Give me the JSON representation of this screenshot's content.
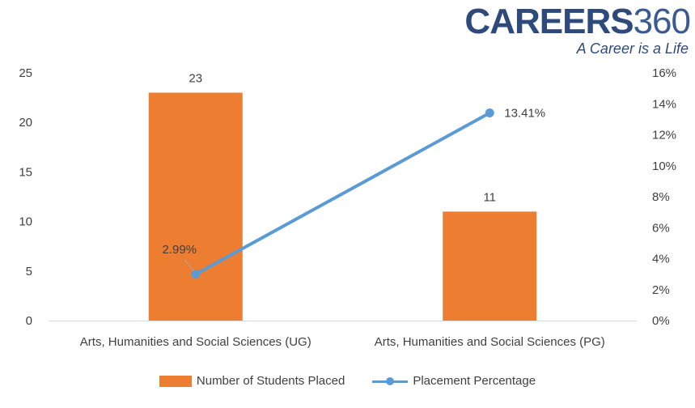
{
  "logo": {
    "brand": "CAREERS",
    "number": "360",
    "tagline": "A Career is a Life"
  },
  "chart_data": {
    "type": "bar",
    "categories": [
      "Arts, Humanities and Social Sciences (UG)",
      "Arts, Humanities and Social Sciences (PG)"
    ],
    "series": [
      {
        "name": "Number of Students Placed",
        "kind": "bar",
        "axis": "left",
        "values": [
          23,
          11
        ],
        "labels": [
          "23",
          "11"
        ],
        "color": "#ed7d31"
      },
      {
        "name": "Placement Percentage",
        "kind": "line",
        "axis": "right",
        "values": [
          2.99,
          13.41
        ],
        "labels": [
          "2.99%",
          "13.41%"
        ],
        "color": "#5b9bd5"
      }
    ],
    "yleft": {
      "ylim": [
        0,
        25
      ],
      "ticks": [
        "0",
        "5",
        "10",
        "15",
        "20",
        "25"
      ]
    },
    "yright": {
      "ylim": [
        0,
        16
      ],
      "ticks": [
        "0%",
        "2%",
        "4%",
        "6%",
        "8%",
        "10%",
        "12%",
        "14%",
        "16%"
      ]
    },
    "grid": false,
    "legend_position": "bottom"
  }
}
